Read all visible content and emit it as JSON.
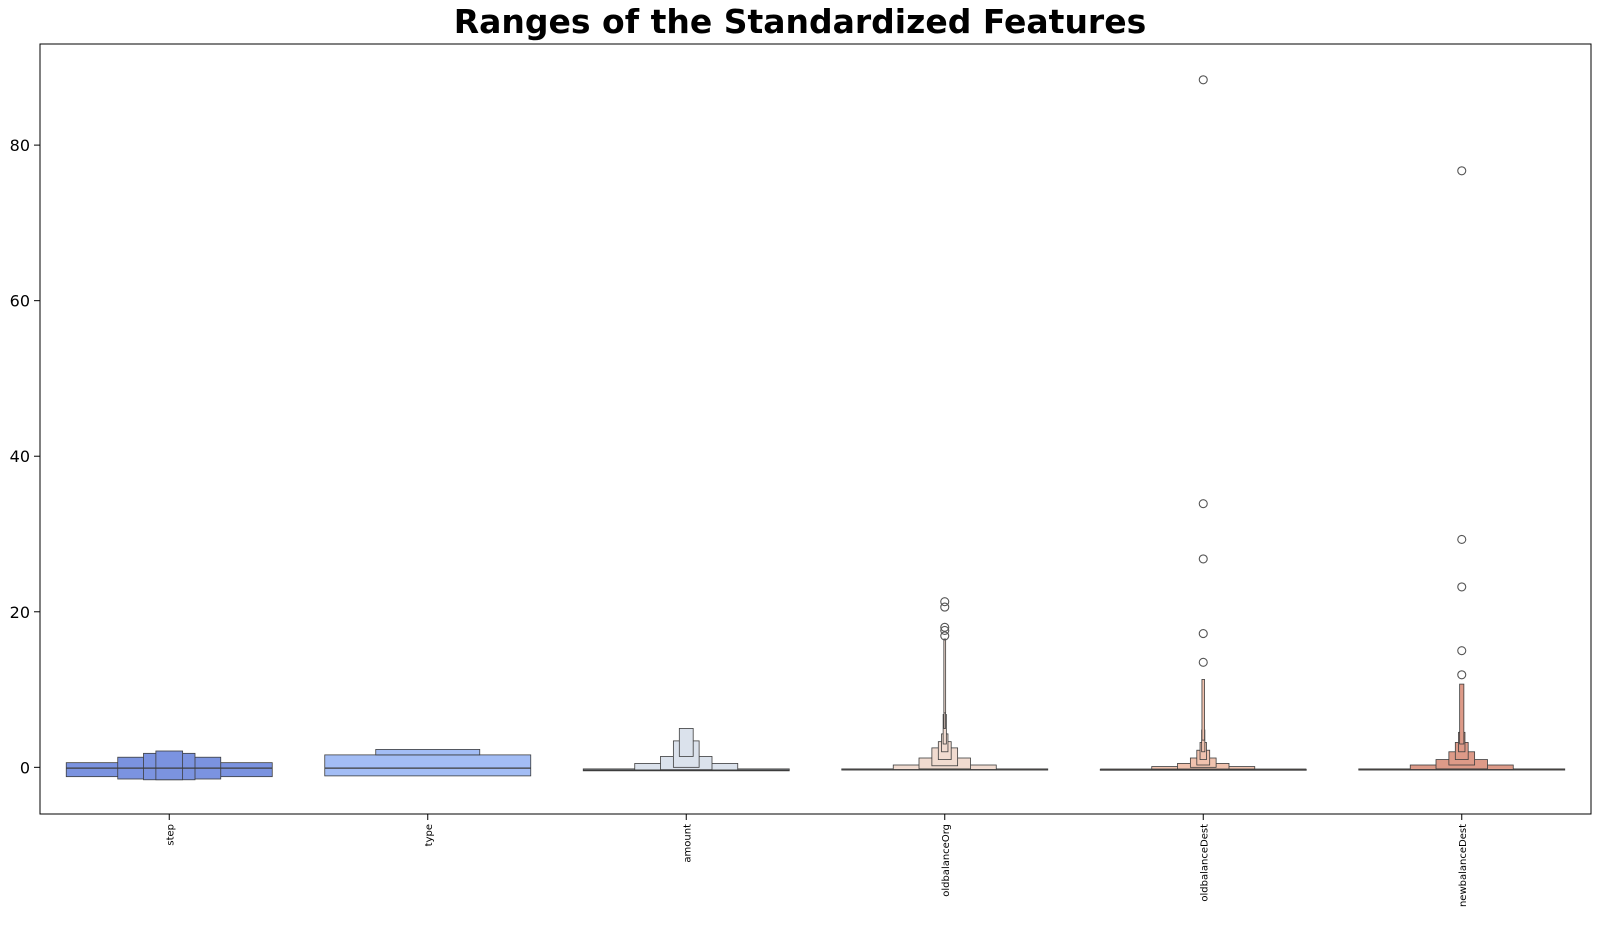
{
  "chart_data": {
    "type": "boxen",
    "title": "Ranges of the Standardized Features",
    "xlabel": "",
    "ylabel": "",
    "ylim": [
      -6,
      93
    ],
    "yticks": [
      0,
      20,
      40,
      60,
      80
    ],
    "grid": false,
    "categories": [
      "step",
      "type",
      "amount",
      "oldbalanceOrg",
      "oldbalanceDest",
      "newbalanceDest"
    ],
    "colors": [
      "#7b93e0",
      "#a3bdf5",
      "#dbe2ec",
      "#f1dbd0",
      "#f0c2ae",
      "#dd9a88"
    ],
    "series": [
      {
        "category": "step",
        "median": -0.1,
        "boxes": [
          [
            -1.2,
            0.6
          ],
          [
            -1.5,
            1.3
          ],
          [
            -1.6,
            1.8
          ],
          [
            -1.6,
            2.1
          ]
        ],
        "outliers": []
      },
      {
        "category": "type",
        "median": -0.1,
        "boxes": [
          [
            -1.1,
            1.6
          ],
          [
            1.6,
            2.3
          ]
        ],
        "outliers": []
      },
      {
        "category": "amount",
        "median": -0.35,
        "boxes": [
          [
            -0.45,
            -0.2
          ],
          [
            -0.4,
            0.5
          ],
          [
            -0.3,
            1.4
          ],
          [
            0.0,
            3.4
          ],
          [
            1.4,
            5.0
          ]
        ],
        "outliers": []
      },
      {
        "category": "oldbalanceOrg",
        "median": -0.3,
        "boxes": [
          [
            -0.35,
            -0.2
          ],
          [
            -0.3,
            0.3
          ],
          [
            -0.2,
            1.2
          ],
          [
            0.2,
            2.5
          ],
          [
            1.0,
            3.3
          ],
          [
            2.0,
            4.3
          ],
          [
            3.0,
            6.8
          ],
          [
            5.0,
            8.8
          ],
          [
            7.0,
            16.5
          ]
        ],
        "outliers": [
          16.9,
          17.6,
          18.0,
          20.6,
          21.3
        ]
      },
      {
        "category": "oldbalanceDest",
        "median": -0.25,
        "boxes": [
          [
            -0.3,
            -0.25
          ],
          [
            -0.28,
            0.1
          ],
          [
            -0.25,
            0.5
          ],
          [
            0.0,
            1.2
          ],
          [
            0.3,
            2.2
          ],
          [
            1.0,
            3.2
          ],
          [
            2.0,
            4.8
          ],
          [
            3.5,
            11.3
          ]
        ],
        "outliers": [
          13.5,
          17.2,
          26.8,
          33.9,
          88.4
        ]
      },
      {
        "category": "newbalanceDest",
        "median": -0.3,
        "boxes": [
          [
            -0.35,
            -0.2
          ],
          [
            -0.3,
            0.3
          ],
          [
            -0.2,
            1.0
          ],
          [
            0.3,
            2.0
          ],
          [
            1.0,
            3.2
          ],
          [
            2.0,
            4.5
          ],
          [
            3.0,
            10.7
          ]
        ],
        "outliers": [
          11.9,
          15.0,
          23.2,
          29.3,
          76.7
        ]
      }
    ]
  }
}
